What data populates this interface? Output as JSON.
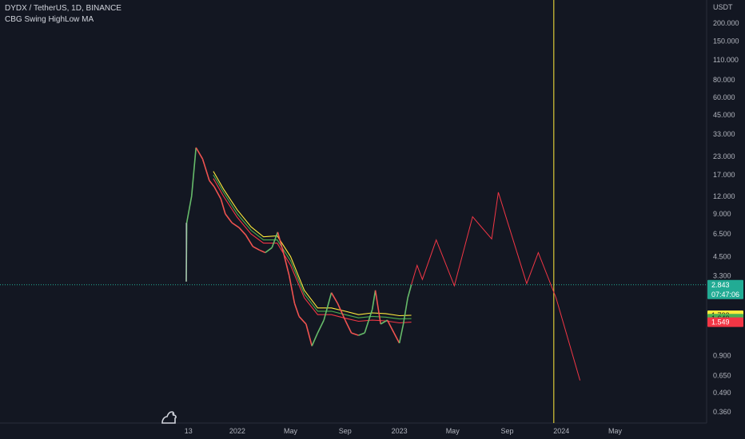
{
  "header": {
    "symbol_line": "DYDX / TetherUS, 1D, BINANCE",
    "indicator": "CBG Swing HighLow MA"
  },
  "price_scale": {
    "unit": "USDT",
    "ticks": [
      "200.000",
      "150.000",
      "110.000",
      "80.000",
      "60.000",
      "45.000",
      "33.000",
      "23.000",
      "17.000",
      "12.000",
      "9.000",
      "6.500",
      "4.500",
      "3.300",
      "2.500",
      "0.900",
      "0.650",
      "0.490",
      "0.360"
    ]
  },
  "time_scale": {
    "labels": [
      "13",
      "2022",
      "May",
      "Sep",
      "2023",
      "May",
      "Sep",
      "2024",
      "May"
    ]
  },
  "tags": {
    "last_price": "2.843",
    "countdown": "07:47:06",
    "ma_top": "1.732",
    "ma_mid": "1.640",
    "ma_low": "1.549"
  },
  "colors": {
    "background": "#131722",
    "last_price": "#22ab94",
    "ma_top": "#ffeb3b",
    "ma_mid": "#4caf50",
    "ma_low": "#f23645",
    "projection": "#f23645",
    "vertical_marker": "#ffeb3b",
    "candle_up": "#66bb6a",
    "candle_down": "#ef5350"
  },
  "chart_data": {
    "type": "line",
    "scale": "log",
    "ylim": [
      0.3,
      250
    ],
    "last_price": 2.843,
    "series": [
      {
        "points": [
          [
            "2021-09-08",
            3.0
          ],
          [
            "2021-09-09",
            7.8
          ],
          [
            "2021-09-20",
            12.0
          ],
          [
            "2021-09-30",
            26.5
          ],
          [
            "2021-10-15",
            22.0
          ],
          [
            "2021-10-30",
            15.5
          ],
          [
            "2021-11-10",
            14.0
          ],
          [
            "2021-11-25",
            11.5
          ],
          [
            "2021-12-05",
            9.0
          ],
          [
            "2021-12-20",
            7.8
          ],
          [
            "2022-01-05",
            7.2
          ],
          [
            "2022-01-20",
            6.4
          ],
          [
            "2022-02-05",
            5.3
          ],
          [
            "2022-02-20",
            5.0
          ],
          [
            "2022-03-05",
            4.8
          ],
          [
            "2022-03-20",
            5.2
          ],
          [
            "2022-04-02",
            6.7
          ],
          [
            "2022-04-15",
            4.8
          ],
          [
            "2022-04-28",
            3.3
          ],
          [
            "2022-05-10",
            2.1
          ],
          [
            "2022-05-20",
            1.7
          ],
          [
            "2022-06-05",
            1.5
          ],
          [
            "2022-06-18",
            1.05
          ],
          [
            "2022-07-01",
            1.3
          ],
          [
            "2022-07-15",
            1.6
          ],
          [
            "2022-08-01",
            2.5
          ],
          [
            "2022-08-15",
            2.1
          ],
          [
            "2022-09-01",
            1.6
          ],
          [
            "2022-09-15",
            1.3
          ],
          [
            "2022-10-01",
            1.25
          ],
          [
            "2022-10-15",
            1.3
          ],
          [
            "2022-11-01",
            1.9
          ],
          [
            "2022-11-08",
            2.6
          ],
          [
            "2022-11-20",
            1.5
          ],
          [
            "2022-12-05",
            1.6
          ],
          [
            "2022-12-20",
            1.3
          ],
          [
            "2023-01-01",
            1.1
          ],
          [
            "2023-01-10",
            1.5
          ],
          [
            "2023-01-20",
            2.3
          ],
          [
            "2023-01-28",
            2.843
          ]
        ]
      },
      {
        "points": [
          [
            "2021-11-08",
            18.0
          ],
          [
            "2021-12-01",
            13.5
          ],
          [
            "2022-01-01",
            9.6
          ],
          [
            "2022-02-01",
            7.3
          ],
          [
            "2022-03-01",
            6.2
          ],
          [
            "2022-04-01",
            6.3
          ],
          [
            "2022-05-01",
            4.5
          ],
          [
            "2022-06-01",
            2.6
          ],
          [
            "2022-07-01",
            1.95
          ],
          [
            "2022-08-01",
            1.95
          ],
          [
            "2022-09-01",
            1.85
          ],
          [
            "2022-10-01",
            1.75
          ],
          [
            "2022-11-01",
            1.8
          ],
          [
            "2022-12-01",
            1.78
          ],
          [
            "2023-01-01",
            1.72
          ],
          [
            "2023-01-28",
            1.732
          ]
        ]
      },
      {
        "points": [
          [
            "2021-11-08",
            17.0
          ],
          [
            "2021-12-01",
            12.8
          ],
          [
            "2022-01-01",
            9.0
          ],
          [
            "2022-02-01",
            6.9
          ],
          [
            "2022-03-01",
            5.9
          ],
          [
            "2022-04-01",
            5.9
          ],
          [
            "2022-05-01",
            4.2
          ],
          [
            "2022-06-01",
            2.45
          ],
          [
            "2022-07-01",
            1.85
          ],
          [
            "2022-08-01",
            1.85
          ],
          [
            "2022-09-01",
            1.75
          ],
          [
            "2022-10-01",
            1.66
          ],
          [
            "2022-11-01",
            1.7
          ],
          [
            "2022-12-01",
            1.68
          ],
          [
            "2023-01-01",
            1.63
          ],
          [
            "2023-01-28",
            1.64
          ]
        ]
      },
      {
        "points": [
          [
            "2021-11-08",
            16.0
          ],
          [
            "2021-12-01",
            12.0
          ],
          [
            "2022-01-01",
            8.5
          ],
          [
            "2022-02-01",
            6.5
          ],
          [
            "2022-03-01",
            5.6
          ],
          [
            "2022-04-01",
            5.6
          ],
          [
            "2022-05-01",
            3.9
          ],
          [
            "2022-06-01",
            2.3
          ],
          [
            "2022-07-01",
            1.75
          ],
          [
            "2022-08-01",
            1.75
          ],
          [
            "2022-09-01",
            1.65
          ],
          [
            "2022-10-01",
            1.57
          ],
          [
            "2022-11-01",
            1.6
          ],
          [
            "2022-12-01",
            1.58
          ],
          [
            "2023-01-01",
            1.53
          ],
          [
            "2023-01-28",
            1.549
          ]
        ]
      },
      {
        "points": [
          [
            "2023-01-28",
            2.843
          ],
          [
            "2023-02-10",
            3.9
          ],
          [
            "2023-02-22",
            3.1
          ],
          [
            "2023-03-25",
            5.9
          ],
          [
            "2023-05-05",
            2.8
          ],
          [
            "2023-06-15",
            8.6
          ],
          [
            "2023-07-28",
            6.0
          ],
          [
            "2023-08-12",
            12.8
          ],
          [
            "2023-10-15",
            2.9
          ],
          [
            "2023-11-10",
            4.8
          ],
          [
            "2023-12-20",
            2.3
          ],
          [
            "2024-02-12",
            0.6
          ]
        ]
      }
    ],
    "vertical_line_date": "2023-12-15"
  }
}
